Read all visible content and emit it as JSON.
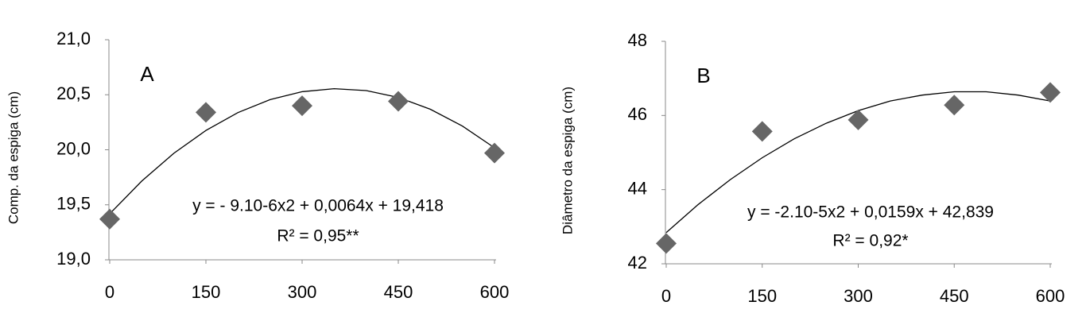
{
  "chart_data": [
    {
      "type": "scatter",
      "y_label": "Comp. da espiga (cm)",
      "annotation": "A",
      "equation": "y = - 9.10-6x2 + 0,0064x + 19,418",
      "r_squared": "R² = 0,95**",
      "x": [
        0,
        150,
        300,
        450,
        600
      ],
      "values": [
        19.37,
        20.34,
        20.4,
        20.44,
        19.97
      ],
      "color": "#666666",
      "trendline": {
        "x": [
          0,
          50,
          100,
          150,
          200,
          250,
          300,
          350,
          400,
          450,
          500,
          550,
          600
        ],
        "values": [
          19.418,
          19.7155,
          19.968,
          20.1755,
          20.338,
          20.4555,
          20.528,
          20.5555,
          20.538,
          20.4755,
          20.368,
          20.2155,
          20.018
        ],
        "color": "#000000"
      },
      "xlim": [
        0,
        600
      ],
      "xticks": [
        0,
        150,
        300,
        450,
        600
      ],
      "ylim": [
        19,
        21
      ],
      "yticks": [
        {
          "value": 19,
          "label": "19,0"
        },
        {
          "value": 19.5,
          "label": "19,5"
        },
        {
          "value": 20,
          "label": "20,0"
        },
        {
          "value": 20.5,
          "label": "20,5"
        },
        {
          "value": 21,
          "label": "21,0"
        }
      ]
    },
    {
      "type": "scatter",
      "y_label": "Diâmetro da espiga (cm)",
      "annotation": "B",
      "equation": "y = -2.10-5x2 + 0,0159x + 42,839",
      "r_squared": "R² = 0,92*",
      "x": [
        0,
        150,
        300,
        450,
        600
      ],
      "values": [
        42.55,
        45.57,
        45.88,
        46.28,
        46.62
      ],
      "color": "#666666",
      "trendline": {
        "x": [
          0,
          50,
          100,
          150,
          200,
          250,
          300,
          350,
          400,
          450,
          500,
          550,
          600
        ],
        "values": [
          42.84,
          43.6,
          44.27,
          44.86,
          45.37,
          45.79,
          46.13,
          46.39,
          46.55,
          46.64,
          46.64,
          46.55,
          46.39
        ],
        "color": "#000000"
      },
      "xlim": [
        0,
        600
      ],
      "xticks": [
        0,
        150,
        300,
        450,
        600
      ],
      "ylim": [
        42,
        48
      ],
      "yticks": [
        42,
        44,
        46,
        48
      ]
    }
  ]
}
